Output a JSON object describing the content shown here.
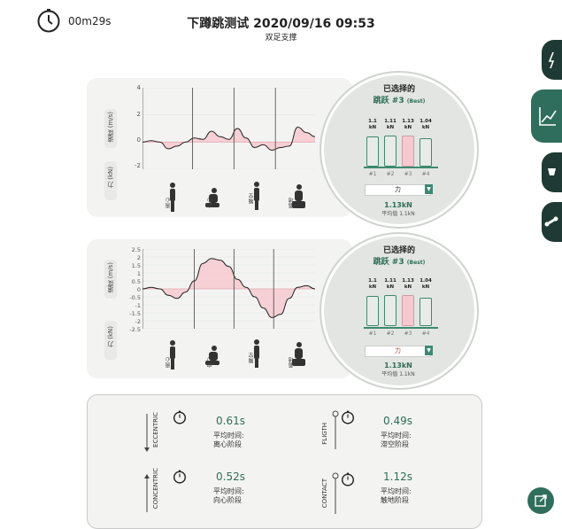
{
  "header": {
    "timer": "00m29s",
    "title": "下蹲跳测试 2020/09/16 09:53",
    "subtitle": "双足支撑"
  },
  "chart_top": {
    "ylabel_velocity": "速度 (m/s)",
    "ylabel_force": "力 (kN)",
    "y_ticks": [
      "4",
      "2",
      "0",
      "-2"
    ],
    "phases": [
      "离心",
      "向心",
      "腾空",
      "着地"
    ]
  },
  "chart_bottom": {
    "ylabel_velocity": "速度 (m/s)",
    "ylabel_force": "力 (kN)",
    "y_ticks": [
      "2.5",
      "2",
      "1.5",
      "1",
      "0.5",
      "0",
      "-0.5",
      "-1",
      "-1.5",
      "-2",
      "-2.5"
    ],
    "phases": [
      "离心",
      "向心",
      "腾空",
      "着地"
    ]
  },
  "chart_data": [
    {
      "type": "line",
      "ylim": [
        -2,
        4
      ],
      "x": [
        0,
        1,
        2,
        3,
        4,
        5,
        6,
        7,
        8,
        9,
        10,
        11,
        12,
        13,
        14,
        15,
        16,
        17,
        18,
        19,
        20
      ],
      "series": [
        {
          "values": [
            0,
            0.1,
            0,
            -0.5,
            -0.3,
            0,
            0.3,
            0.2,
            0.8,
            0.4,
            0.2,
            1.0,
            0.3,
            -0.4,
            -0.2,
            -0.6,
            -0.4,
            -0.3,
            1.1,
            0.7,
            0.4
          ]
        }
      ]
    },
    {
      "type": "line",
      "ylim": [
        -2.5,
        2.5
      ],
      "x": [
        0,
        1,
        2,
        3,
        4,
        5,
        6,
        7,
        8,
        9,
        10,
        11,
        12,
        13,
        14,
        15,
        16,
        17,
        18,
        19,
        20
      ],
      "series": [
        {
          "values": [
            0,
            0.1,
            0,
            -0.4,
            -0.6,
            -0.2,
            0.5,
            1.6,
            1.9,
            1.8,
            1.4,
            0.6,
            0.1,
            -0.5,
            -1.2,
            -1.8,
            -1.6,
            -0.6,
            0.1,
            0.2,
            0
          ]
        }
      ]
    }
  ],
  "panel_top": {
    "selected_label": "已选择的",
    "jump_label": "跳跃 #3",
    "best_tag": "(Best)",
    "bars": [
      {
        "value": "1.1",
        "unit": "kN",
        "idx": "#1",
        "fill": 0.85,
        "best": false
      },
      {
        "value": "1.11",
        "unit": "kN",
        "idx": "#2",
        "fill": 0.86,
        "best": false
      },
      {
        "value": "1.13",
        "unit": "kN",
        "idx": "#3",
        "fill": 0.88,
        "best": true
      },
      {
        "value": "1.04",
        "unit": "kN",
        "idx": "#4",
        "fill": 0.8,
        "best": false
      }
    ],
    "dropdown": "力",
    "result": "1.13kN",
    "average": "平均值 1.1kN"
  },
  "panel_bottom": {
    "selected_label": "已选择的",
    "jump_label": "跳跃 #3",
    "best_tag": "(Best)",
    "bars": [
      {
        "value": "1.1",
        "unit": "kN",
        "idx": "#1",
        "fill": 0.85,
        "best": false
      },
      {
        "value": "1.11",
        "unit": "kN",
        "idx": "#2",
        "fill": 0.86,
        "best": false
      },
      {
        "value": "1.13",
        "unit": "kN",
        "idx": "#3",
        "fill": 0.88,
        "best": true
      },
      {
        "value": "1.04",
        "unit": "kN",
        "idx": "#4",
        "fill": 0.8,
        "best": false
      }
    ],
    "dropdown": "力",
    "result": "1.13kN",
    "average": "平均值 1.1kN"
  },
  "metrics": {
    "eccentric": {
      "name": "ECCENTRIC",
      "value": "0.61s",
      "label1": "平均时间:",
      "label2": "离心阶段"
    },
    "flight": {
      "name": "FLIGTH",
      "value": "0.49s",
      "label1": "平均时间:",
      "label2": "滞空阶段"
    },
    "concentric": {
      "name": "CONCENTRIC",
      "value": "0.52s",
      "label1": "平均时间:",
      "label2": "向心阶段"
    },
    "contact": {
      "name": "CONTACT",
      "value": "1.12s",
      "label1": "平均时间:",
      "label2": "触地阶段"
    }
  },
  "colors": {
    "accent": "#2f6e5c",
    "fill": "#f6c9cf",
    "dark": "#1f3a34"
  }
}
